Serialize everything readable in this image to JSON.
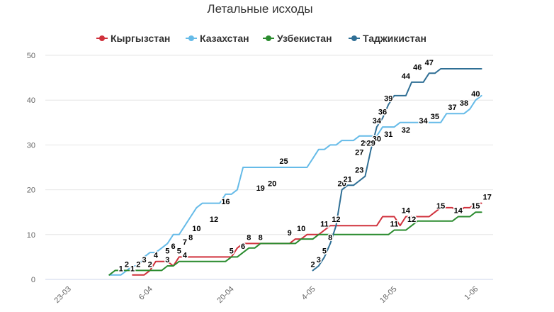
{
  "chart_data": {
    "type": "line",
    "title": "Летальные исходы",
    "xlabel": "",
    "ylabel": "",
    "ylim": [
      0,
      50
    ],
    "yticks": [
      0,
      10,
      20,
      30,
      40,
      50
    ],
    "x_tick_labels": [
      "23-03",
      "6-04",
      "20-04",
      "4-05",
      "18-05",
      "1-06"
    ],
    "x_tick_index": [
      0,
      14,
      28,
      42,
      56,
      70
    ],
    "grid": "horizontal",
    "legend_position": "top",
    "series": [
      {
        "name": "Кыргызстан",
        "color": "#d0313c",
        "x": [
          11,
          13,
          14,
          15,
          16,
          17,
          18,
          19,
          20,
          28,
          29,
          30,
          34,
          35,
          36,
          37,
          38,
          39,
          40,
          41,
          42,
          43,
          44,
          45,
          46,
          47,
          48,
          49,
          50,
          51,
          52,
          53,
          54,
          55,
          56,
          57,
          58,
          59,
          60,
          61,
          62,
          63,
          64,
          65,
          66,
          67,
          68,
          69,
          70,
          71
        ],
        "y": [
          1,
          1,
          2,
          4,
          4,
          4,
          3,
          5,
          5,
          5,
          7,
          8,
          8,
          8,
          8,
          8,
          8,
          9,
          9,
          10,
          10,
          10,
          11,
          12,
          12,
          12,
          12,
          12,
          12,
          12,
          12,
          12,
          14,
          14,
          14,
          12,
          14,
          14,
          14,
          14,
          14,
          15,
          16,
          16,
          16,
          15,
          16,
          16,
          17,
          17
        ],
        "labels": [
          [
            11,
            1,
            "1"
          ],
          [
            14,
            2,
            "2"
          ],
          [
            15,
            4,
            "4"
          ],
          [
            17,
            3,
            "3"
          ],
          [
            19,
            5,
            "5"
          ],
          [
            20,
            4,
            "4"
          ],
          [
            28,
            5,
            "5"
          ],
          [
            30,
            6,
            "6"
          ],
          [
            31,
            8,
            "8"
          ],
          [
            33,
            8,
            "8"
          ],
          [
            38,
            9,
            "9"
          ],
          [
            40,
            10,
            "10"
          ],
          [
            44,
            11,
            "11"
          ],
          [
            46,
            12,
            "12"
          ],
          [
            56,
            11,
            "11"
          ],
          [
            58,
            14,
            "14"
          ],
          [
            59,
            12,
            "12"
          ],
          [
            64,
            15,
            "15"
          ],
          [
            67,
            14,
            "14"
          ],
          [
            70,
            15,
            "15"
          ],
          [
            72,
            17,
            "17"
          ]
        ]
      },
      {
        "name": "Казахстан",
        "color": "#66bbe8",
        "x": [
          7,
          8,
          9,
          10,
          11,
          12,
          13,
          14,
          15,
          16,
          17,
          18,
          19,
          20,
          21,
          22,
          23,
          24,
          25,
          26,
          27,
          28,
          29,
          30,
          31,
          32,
          33,
          34,
          35,
          36,
          37,
          38,
          39,
          40,
          41,
          42,
          43,
          44,
          45,
          46,
          47,
          48,
          49,
          50,
          51,
          52,
          53,
          54,
          55,
          56,
          57,
          58,
          59,
          60,
          61,
          62,
          63,
          64,
          65,
          66,
          67,
          68,
          69,
          70,
          71
        ],
        "y": [
          1,
          1,
          1,
          2,
          3,
          3,
          5,
          6,
          6,
          7,
          8,
          10,
          10,
          12,
          14,
          16,
          17,
          17,
          17,
          17,
          19,
          19,
          20,
          25,
          25,
          25,
          25,
          25,
          25,
          25,
          25,
          25,
          25,
          25,
          25,
          27,
          29,
          29,
          30,
          30,
          31,
          31,
          31,
          32,
          32,
          32,
          32,
          34,
          34,
          34,
          35,
          35,
          35,
          35,
          35,
          35,
          35,
          35,
          37,
          37,
          37,
          37,
          38,
          40,
          41
        ],
        "labels": [
          [
            9,
            1,
            "1"
          ],
          [
            10,
            2,
            "2"
          ],
          [
            12,
            2,
            "2"
          ],
          [
            13,
            3,
            "3"
          ],
          [
            17,
            5,
            "5"
          ],
          [
            18,
            6,
            "6"
          ],
          [
            20,
            7,
            "7"
          ],
          [
            21,
            8,
            "8"
          ],
          [
            22,
            10,
            "10"
          ],
          [
            25,
            12,
            "12"
          ],
          [
            27,
            16,
            "16"
          ],
          [
            33,
            19,
            "19"
          ],
          [
            35,
            20,
            "20"
          ],
          [
            37,
            25,
            "25"
          ],
          [
            50,
            27,
            "27"
          ],
          [
            51,
            29,
            "29"
          ],
          [
            53,
            30,
            "30"
          ],
          [
            55,
            31,
            "31"
          ],
          [
            58,
            32,
            "32"
          ],
          [
            61,
            34,
            "34"
          ],
          [
            63,
            35,
            "35"
          ],
          [
            66,
            37,
            "37"
          ],
          [
            68,
            38,
            "38"
          ],
          [
            70,
            40,
            "40"
          ]
        ]
      },
      {
        "name": "Узбекистан",
        "color": "#2a8b2e",
        "x": [
          7,
          8,
          9,
          10,
          11,
          12,
          13,
          14,
          15,
          16,
          17,
          18,
          19,
          20,
          21,
          22,
          23,
          24,
          25,
          26,
          27,
          28,
          29,
          30,
          31,
          32,
          33,
          34,
          35,
          36,
          37,
          38,
          39,
          40,
          41,
          42,
          43,
          44,
          45,
          46,
          47,
          48,
          49,
          50,
          51,
          52,
          53,
          54,
          55,
          56,
          57,
          58,
          59,
          60,
          61,
          62,
          63,
          64,
          65,
          66,
          67,
          68,
          69,
          70,
          71
        ],
        "y": [
          1,
          2,
          2,
          2,
          2,
          2,
          2,
          2,
          2,
          2,
          3,
          3,
          4,
          4,
          4,
          4,
          4,
          4,
          4,
          4,
          4,
          5,
          5,
          6,
          7,
          7,
          8,
          8,
          8,
          8,
          8,
          8,
          8,
          9,
          9,
          9,
          10,
          10,
          10,
          10,
          10,
          10,
          10,
          10,
          10,
          10,
          10,
          10,
          10,
          11,
          11,
          11,
          12,
          13,
          13,
          13,
          13,
          13,
          13,
          13,
          14,
          14,
          14,
          15,
          15
        ],
        "labels": []
      },
      {
        "name": "Таджикистан",
        "color": "#2f6f95",
        "x": [
          42,
          43,
          44,
          45,
          46,
          47,
          48,
          49,
          50,
          51,
          52,
          53,
          54,
          55,
          56,
          57,
          58,
          59,
          60,
          61,
          62,
          63,
          64,
          65,
          66,
          67,
          68,
          69,
          70,
          71
        ],
        "y": [
          2,
          3,
          5,
          8,
          12,
          20,
          21,
          21,
          22,
          23,
          29,
          34,
          36,
          39,
          41,
          41,
          41,
          44,
          44,
          44,
          46,
          46,
          47,
          47,
          47,
          47,
          47,
          47,
          47,
          47
        ],
        "labels": [
          [
            42,
            2,
            "2"
          ],
          [
            43,
            3,
            "3"
          ],
          [
            44,
            5,
            "5"
          ],
          [
            45,
            8,
            "8"
          ],
          [
            47,
            20,
            "20"
          ],
          [
            48,
            21,
            "21"
          ],
          [
            50,
            23,
            "23"
          ],
          [
            52,
            29,
            "29"
          ],
          [
            53,
            34,
            "34"
          ],
          [
            54,
            36,
            "36"
          ],
          [
            55,
            39,
            "39"
          ],
          [
            58,
            44,
            "44"
          ],
          [
            60,
            46,
            "46"
          ],
          [
            62,
            47,
            "47"
          ]
        ]
      }
    ]
  }
}
